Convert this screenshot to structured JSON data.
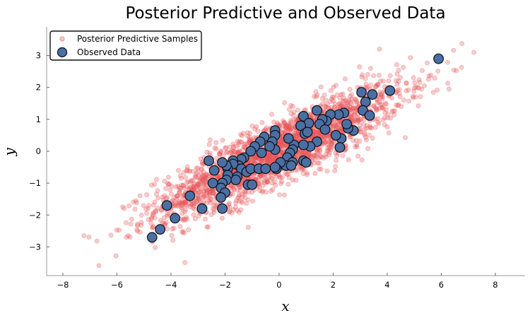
{
  "chart_data": {
    "type": "scatter",
    "title": "Posterior Predictive and Observed Data",
    "xlabel": "x",
    "ylabel": "y",
    "xlim": [
      -8.6,
      9.1
    ],
    "ylim": [
      -3.9,
      3.9
    ],
    "xticks": [
      -8,
      -6,
      -4,
      -2,
      0,
      2,
      4,
      6,
      8
    ],
    "yticks": [
      -3,
      -2,
      -1,
      0,
      1,
      2,
      3
    ],
    "grid": false,
    "legend_position": "top-left",
    "colors": {
      "predictive": "#e8555a",
      "observed_fill": "#4a6fa5",
      "observed_edge": "#111111"
    },
    "series": [
      {
        "name": "Posterior Predictive Samples",
        "marker": "small-translucent-circle",
        "color": "#e8555a",
        "model": {
          "slope": 0.4,
          "intercept": 0.0,
          "noise_sd": 0.5,
          "n": 2400
        }
      },
      {
        "name": "Observed Data",
        "marker": "large-circle",
        "color": "#4a6fa5",
        "points": [
          [
            5.9,
            2.9
          ],
          [
            4.1,
            1.9
          ],
          [
            3.45,
            1.78
          ],
          [
            3.05,
            1.85
          ],
          [
            3.2,
            1.55
          ],
          [
            3.1,
            1.28
          ],
          [
            3.35,
            1.12
          ],
          [
            2.4,
            1.2
          ],
          [
            2.2,
            1.15
          ],
          [
            1.9,
            1.15
          ],
          [
            1.75,
            0.95
          ],
          [
            1.6,
            1.0
          ],
          [
            1.4,
            1.28
          ],
          [
            1.5,
            0.85
          ],
          [
            0.9,
            1.1
          ],
          [
            1.1,
            0.88
          ],
          [
            0.8,
            0.8
          ],
          [
            0.95,
            0.55
          ],
          [
            1.05,
            0.6
          ],
          [
            1.7,
            0.68
          ],
          [
            2.75,
            0.65
          ],
          [
            2.55,
            0.72
          ],
          [
            2.5,
            0.85
          ],
          [
            2.3,
            0.4
          ],
          [
            2.25,
            0.12
          ],
          [
            2.1,
            0.5
          ],
          [
            1.4,
            0.3
          ],
          [
            1.15,
            0.15
          ],
          [
            0.9,
            0.2
          ],
          [
            0.55,
            0.2
          ],
          [
            0.35,
            0.4
          ],
          [
            0.5,
            0.05
          ],
          [
            0.4,
            -0.05
          ],
          [
            0.3,
            -0.2
          ],
          [
            0.5,
            -0.35
          ],
          [
            0.25,
            -0.45
          ],
          [
            0.05,
            -0.35
          ],
          [
            0.45,
            -0.45
          ],
          [
            -0.1,
            -0.55
          ],
          [
            -0.15,
            -0.5
          ],
          [
            0.9,
            -0.3
          ],
          [
            1.0,
            -0.35
          ],
          [
            -0.15,
            0.65
          ],
          [
            -0.15,
            0.5
          ],
          [
            -0.25,
            0.3
          ],
          [
            -0.15,
            0.05
          ],
          [
            -0.35,
            0.15
          ],
          [
            -0.55,
            0.45
          ],
          [
            -0.7,
            0.3
          ],
          [
            -0.65,
            -0.05
          ],
          [
            -0.9,
            0.15
          ],
          [
            -1.05,
            0.0
          ],
          [
            -1.3,
            -0.2
          ],
          [
            -1.4,
            -0.25
          ],
          [
            -1.5,
            -0.45
          ],
          [
            -1.7,
            -0.3
          ],
          [
            -1.7,
            -0.4
          ],
          [
            -1.9,
            -0.55
          ],
          [
            -1.95,
            -0.45
          ],
          [
            -2.1,
            -0.35
          ],
          [
            -1.4,
            -0.55
          ],
          [
            -1.2,
            -0.65
          ],
          [
            -1.05,
            -0.55
          ],
          [
            -0.75,
            -0.55
          ],
          [
            -0.5,
            -0.55
          ],
          [
            -1.55,
            -0.8
          ],
          [
            -1.6,
            -0.9
          ],
          [
            -1.9,
            -0.75
          ],
          [
            -1.95,
            -0.9
          ],
          [
            -2.1,
            -1.0
          ],
          [
            -2.4,
            -0.6
          ],
          [
            -2.6,
            -0.3
          ],
          [
            -2.45,
            -1.0
          ],
          [
            -2.15,
            -1.15
          ],
          [
            -2.0,
            -1.3
          ],
          [
            -2.15,
            -1.45
          ],
          [
            -1.15,
            -1.05
          ],
          [
            -1.0,
            -1.05
          ],
          [
            -3.3,
            -1.4
          ],
          [
            -2.85,
            -1.8
          ],
          [
            -2.1,
            -1.8
          ],
          [
            -4.15,
            -1.7
          ],
          [
            -3.85,
            -2.1
          ],
          [
            -4.4,
            -2.45
          ],
          [
            -4.7,
            -2.7
          ]
        ]
      }
    ]
  }
}
